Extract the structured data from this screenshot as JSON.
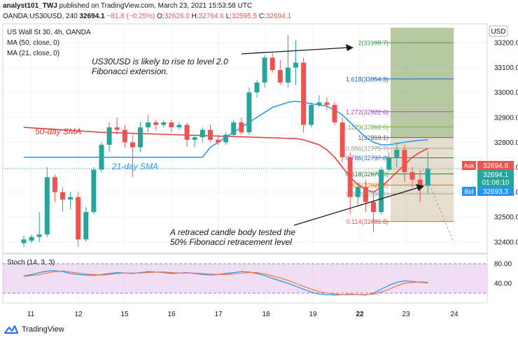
{
  "header": {
    "user": "analyst101_TWJ",
    "published": "published on TradingView.com, March 23, 2021 15:53:58 UTC",
    "symbol": "OANDA:US30USD, 240",
    "last": "32694.1",
    "change": "−81.8 (−0.25%)",
    "o_label": "O:",
    "o": "32626.0",
    "h_label": "H:",
    "h": "32764.6",
    "l_label": "L:",
    "l": "32595.5",
    "c_label": "C:",
    "c": "32694.1"
  },
  "legend": {
    "title": "US Wall St 30, 4h, OANDA",
    "ma50": "MA (50, close, 0)",
    "ma21": "MA (21, close, 0)",
    "stoch": "Stoch (14, 3, 3)"
  },
  "colors": {
    "up": "#26a69a",
    "down": "#ef5350",
    "ma50": "#e53935",
    "ma21": "#2196f3",
    "stoch_k": "#2196f3",
    "stoch_d": "#ff7043",
    "stoch_band": "#e1bee7",
    "fib_box": "#c8b68f",
    "fib_top": "#7c9a57"
  },
  "annotations": {
    "text1_line1": "US30USD is likely to rise to level 2.0",
    "text1_line2": "Fibonacci extension.",
    "text2_line1": "A retraced candle body tested the",
    "text2_line2": "50% Fibonacci retracement level",
    "ma50_label": "50-day SMA",
    "ma21_label": "21-day SMA"
  },
  "price_axis": {
    "unit": "USD",
    "ticks": [
      "33200.0",
      "33100.0",
      "33000.0",
      "32900.0",
      "32800.0",
      "32700.0",
      "32600.0",
      "32500.0",
      "32400.0"
    ],
    "ask_label": "Ask",
    "ask": "32694.8",
    "price": "32694.1",
    "timer": "01:06:10",
    "bid_label": "Bid",
    "bid": "32693.3"
  },
  "stoch_axis": {
    "ticks": [
      "80.00",
      "40.00"
    ]
  },
  "time_axis": {
    "ticks": [
      "11",
      "12",
      "15",
      "16",
      "17",
      "18",
      "19",
      "22",
      "23",
      "24"
    ]
  },
  "footer": {
    "brand": "TradingView"
  },
  "chart_data": {
    "type": "candlestick",
    "title": "US Wall St 30, 4h, OANDA",
    "ylabel": "USD",
    "ylim": [
      32390,
      33260
    ],
    "x_ticks": [
      "11",
      "12",
      "15",
      "16",
      "17",
      "18",
      "19",
      "22",
      "23",
      "24"
    ],
    "candles": [
      {
        "o": 32395,
        "h": 32425,
        "l": 32380,
        "c": 32410
      },
      {
        "o": 32405,
        "h": 32430,
        "l": 32395,
        "c": 32420
      },
      {
        "o": 32420,
        "h": 32520,
        "l": 32400,
        "c": 32430
      },
      {
        "o": 32430,
        "h": 32700,
        "l": 32420,
        "c": 32660
      },
      {
        "o": 32660,
        "h": 32670,
        "l": 32560,
        "c": 32600
      },
      {
        "o": 32600,
        "h": 32620,
        "l": 32520,
        "c": 32570
      },
      {
        "o": 32570,
        "h": 32600,
        "l": 32530,
        "c": 32580
      },
      {
        "o": 32580,
        "h": 32600,
        "l": 32380,
        "c": 32410
      },
      {
        "o": 32410,
        "h": 32540,
        "l": 32400,
        "c": 32520
      },
      {
        "o": 32520,
        "h": 32700,
        "l": 32510,
        "c": 32690
      },
      {
        "o": 32690,
        "h": 32800,
        "l": 32680,
        "c": 32790
      },
      {
        "o": 32790,
        "h": 32880,
        "l": 32760,
        "c": 32860
      },
      {
        "o": 32860,
        "h": 32900,
        "l": 32830,
        "c": 32850
      },
      {
        "o": 32850,
        "h": 32870,
        "l": 32780,
        "c": 32800
      },
      {
        "o": 32800,
        "h": 32830,
        "l": 32660,
        "c": 32780
      },
      {
        "o": 32780,
        "h": 32880,
        "l": 32760,
        "c": 32860
      },
      {
        "o": 32860,
        "h": 32910,
        "l": 32840,
        "c": 32880
      },
      {
        "o": 32880,
        "h": 32890,
        "l": 32850,
        "c": 32870
      },
      {
        "o": 32870,
        "h": 32890,
        "l": 32860,
        "c": 32880
      },
      {
        "o": 32880,
        "h": 32890,
        "l": 32840,
        "c": 32860
      },
      {
        "o": 32860,
        "h": 32880,
        "l": 32850,
        "c": 32870
      },
      {
        "o": 32870,
        "h": 32880,
        "l": 32780,
        "c": 32810
      },
      {
        "o": 32810,
        "h": 32830,
        "l": 32780,
        "c": 32820
      },
      {
        "o": 32820,
        "h": 32860,
        "l": 32800,
        "c": 32850
      },
      {
        "o": 32850,
        "h": 32870,
        "l": 32800,
        "c": 32810
      },
      {
        "o": 32810,
        "h": 32830,
        "l": 32790,
        "c": 32800
      },
      {
        "o": 32800,
        "h": 32840,
        "l": 32790,
        "c": 32830
      },
      {
        "o": 32830,
        "h": 32890,
        "l": 32820,
        "c": 32880
      },
      {
        "o": 32880,
        "h": 32900,
        "l": 32830,
        "c": 32840
      },
      {
        "o": 32840,
        "h": 33020,
        "l": 32830,
        "c": 33000
      },
      {
        "o": 33000,
        "h": 33050,
        "l": 32980,
        "c": 33040
      },
      {
        "o": 33040,
        "h": 33150,
        "l": 33020,
        "c": 33140
      },
      {
        "o": 33140,
        "h": 33160,
        "l": 33080,
        "c": 33090
      },
      {
        "o": 33090,
        "h": 33130,
        "l": 33030,
        "c": 33040
      },
      {
        "o": 33040,
        "h": 33230,
        "l": 33020,
        "c": 33100
      },
      {
        "o": 33100,
        "h": 33210,
        "l": 33030,
        "c": 33120
      },
      {
        "o": 33120,
        "h": 33140,
        "l": 32840,
        "c": 32870
      },
      {
        "o": 32870,
        "h": 32960,
        "l": 32860,
        "c": 32950
      },
      {
        "o": 32950,
        "h": 32990,
        "l": 32940,
        "c": 32960
      },
      {
        "o": 32960,
        "h": 32980,
        "l": 32930,
        "c": 32950
      },
      {
        "o": 32950,
        "h": 32960,
        "l": 32870,
        "c": 32880
      },
      {
        "o": 32880,
        "h": 32900,
        "l": 32720,
        "c": 32740
      },
      {
        "o": 32740,
        "h": 32760,
        "l": 32510,
        "c": 32580
      },
      {
        "o": 32580,
        "h": 32640,
        "l": 32550,
        "c": 32620
      },
      {
        "o": 32620,
        "h": 32650,
        "l": 32520,
        "c": 32560
      },
      {
        "o": 32560,
        "h": 32600,
        "l": 32440,
        "c": 32520
      },
      {
        "o": 32520,
        "h": 32700,
        "l": 32510,
        "c": 32690
      },
      {
        "o": 32690,
        "h": 32760,
        "l": 32680,
        "c": 32740
      },
      {
        "o": 32740,
        "h": 32800,
        "l": 32700,
        "c": 32770
      },
      {
        "o": 32770,
        "h": 32790,
        "l": 32640,
        "c": 32680
      },
      {
        "o": 32680,
        "h": 32700,
        "l": 32620,
        "c": 32650
      },
      {
        "o": 32650,
        "h": 32690,
        "l": 32560,
        "c": 32626
      },
      {
        "o": 32626,
        "h": 32765,
        "l": 32595,
        "c": 32694
      }
    ],
    "ma50": [
      32860,
      32858,
      32856,
      32854,
      32852,
      32850,
      32848,
      32846,
      32844,
      32842,
      32840,
      32839,
      32838,
      32837,
      32836,
      32835,
      32834,
      32833,
      32832,
      32831,
      32830,
      32829,
      32828,
      32827,
      32826,
      32825,
      32824,
      32823,
      32822,
      32821,
      32820,
      32819,
      32818,
      32817,
      32816,
      32815,
      32810,
      32800,
      32790,
      32770,
      32740,
      32700,
      32660,
      32630,
      32610,
      32600,
      32620,
      32650,
      32680,
      32710,
      32740,
      32760,
      32775
    ],
    "ma21": [
      32740,
      32740,
      32740,
      32740,
      32740,
      32740,
      32740,
      32740,
      32740,
      32740,
      32740,
      32740,
      32740,
      32740,
      32740,
      32740,
      32740,
      32740,
      32740,
      32740,
      32740,
      32740,
      32740,
      32740,
      32780,
      32800,
      32820,
      32840,
      32860,
      32880,
      32900,
      32920,
      32940,
      32950,
      32960,
      32965,
      32960,
      32955,
      32950,
      32945,
      32930,
      32910,
      32880,
      32850,
      32820,
      32800,
      32790,
      32790,
      32795,
      32800,
      32805,
      32808,
      32810
    ],
    "fib_levels": [
      {
        "ratio": "0.114",
        "value": 32481.8
      },
      {
        "ratio": "0.382",
        "value": 32593.1
      },
      {
        "ratio": "0.5",
        "value": 32628.0
      },
      {
        "ratio": "0.618",
        "value": 32673.0
      },
      {
        "ratio": "0.786",
        "value": 32737.8
      },
      {
        "ratio": "0.886",
        "value": 32775.7
      },
      {
        "ratio": "1",
        "value": 32819.1
      },
      {
        "ratio": "1.1129",
        "value": 32862.0
      },
      {
        "ratio": "1.272",
        "value": 32922.6
      },
      {
        "ratio": "1.618",
        "value": 33054.3
      },
      {
        "ratio": "2",
        "value": 33199.7
      }
    ],
    "current_price": 32694.1,
    "ask": 32694.8,
    "bid": 32693.3,
    "stochastic": {
      "name": "Stoch (14, 3, 3)",
      "ylim": [
        0,
        100
      ],
      "levels": [
        80,
        20
      ],
      "k": [
        55,
        58,
        62,
        65,
        66,
        64,
        60,
        58,
        57,
        56,
        58,
        60,
        62,
        61,
        60,
        62,
        64,
        63,
        62,
        60,
        61,
        62,
        60,
        58,
        57,
        58,
        60,
        62,
        64,
        63,
        60,
        56,
        50,
        45,
        40,
        34,
        28,
        22,
        18,
        17,
        16,
        17,
        18,
        17,
        16,
        20,
        28,
        36,
        42,
        45,
        44,
        42,
        41
      ],
      "d": [
        54,
        56,
        58,
        61,
        64,
        65,
        63,
        61,
        59,
        58,
        57,
        58,
        60,
        61,
        61,
        61,
        62,
        63,
        63,
        62,
        61,
        61,
        61,
        60,
        59,
        58,
        58,
        59,
        61,
        62,
        62,
        59,
        55,
        51,
        46,
        40,
        34,
        28,
        23,
        20,
        18,
        17,
        17,
        17,
        17,
        18,
        22,
        28,
        35,
        40,
        42,
        43,
        42
      ]
    }
  }
}
